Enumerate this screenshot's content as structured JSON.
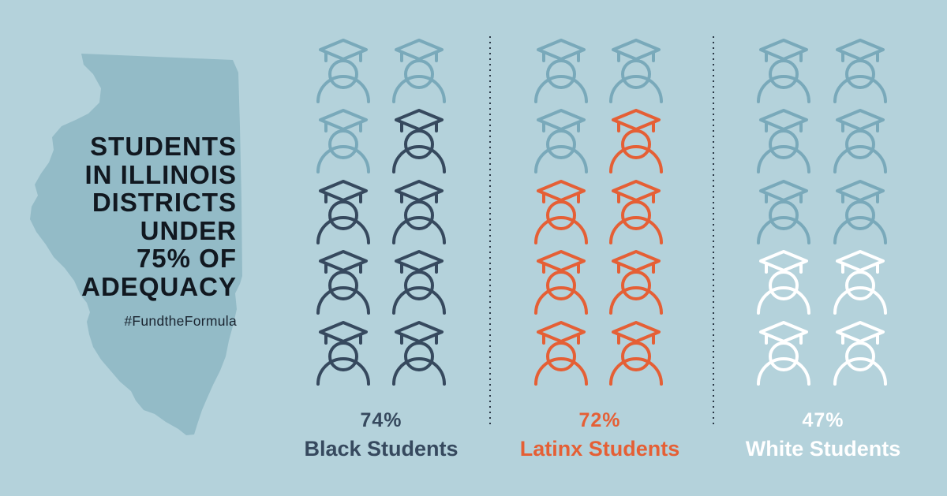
{
  "title_lines": [
    "STUDENTS",
    "IN ILLINOIS",
    "DISTRICTS",
    "UNDER",
    "75% OF",
    "ADEQUACY"
  ],
  "hashtag": "#FundtheFormula",
  "colors": {
    "background": "#b4d2db",
    "state": "#93bbc7",
    "icon_empty": "#79a9ba",
    "Black Students": "#36495e",
    "Latinx Students": "#e55f35",
    "White Students": "#ffffff"
  },
  "chart_data": {
    "type": "pictograph",
    "icons_per_group": 10,
    "categories": [
      "Black Students",
      "Latinx Students",
      "White Students"
    ],
    "values": [
      74,
      72,
      47
    ],
    "value_labels": [
      "74%",
      "72%",
      "47%"
    ],
    "unit": "%"
  }
}
